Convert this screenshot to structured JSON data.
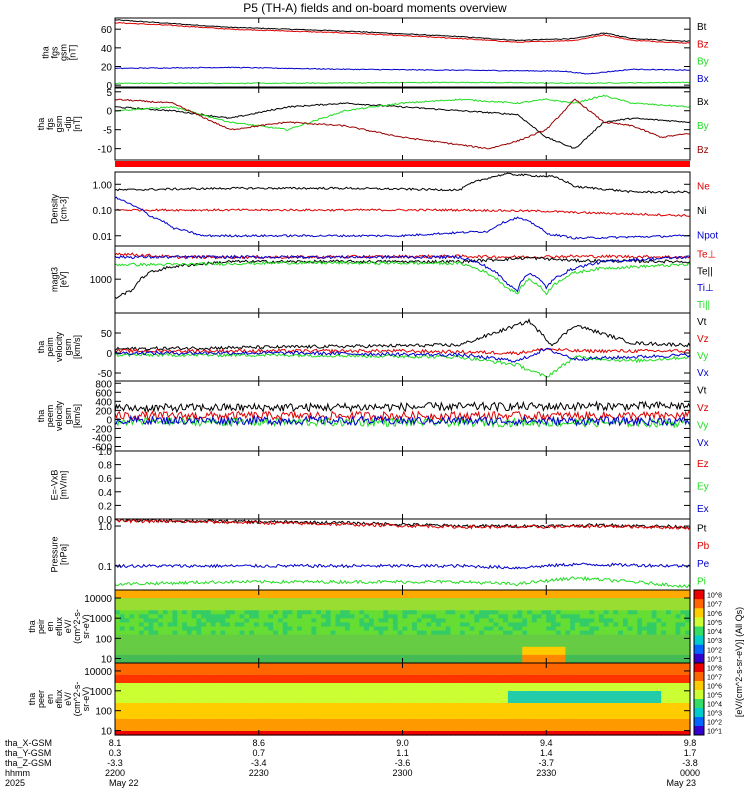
{
  "title": "P5 (TH-A) fields and on-board moments overview",
  "colors": {
    "black": "#000000",
    "red": "#dd0000",
    "blue": "#0000cc",
    "green": "#22dd22",
    "darkred": "#990000",
    "frame": "#000000"
  },
  "chart_data": [
    {
      "type": "line",
      "panel": "fgs_btot",
      "ylabel": [
        "tha",
        "fgs",
        "gsm",
        "[nT]"
      ],
      "ylim": [
        -2,
        72
      ],
      "yticks": [
        0,
        20,
        40,
        60
      ],
      "series": [
        {
          "name": "Bt",
          "color": "#000000",
          "x": [
            0,
            0.1,
            0.2,
            0.3,
            0.4,
            0.5,
            0.6,
            0.7,
            0.8,
            0.85,
            0.9,
            1.0
          ],
          "y": [
            70,
            66,
            62,
            60,
            58,
            55,
            52,
            48,
            50,
            56,
            50,
            47
          ]
        },
        {
          "name": "Bz",
          "color": "#dd0000",
          "x": [
            0,
            0.1,
            0.2,
            0.3,
            0.4,
            0.5,
            0.6,
            0.7,
            0.8,
            0.85,
            0.9,
            1.0
          ],
          "y": [
            67,
            64,
            60,
            58,
            56,
            53,
            50,
            46,
            48,
            54,
            48,
            45
          ]
        },
        {
          "name": "By",
          "color": "#22dd22",
          "x": [
            0,
            0.3,
            0.6,
            0.8,
            1.0
          ],
          "y": [
            2,
            2,
            3,
            2,
            3
          ]
        },
        {
          "name": "Bx",
          "color": "#0000cc",
          "x": [
            0,
            0.2,
            0.4,
            0.6,
            0.78,
            0.82,
            0.9,
            1.0
          ],
          "y": [
            18,
            19,
            17,
            16,
            15,
            12,
            17,
            16
          ]
        }
      ]
    },
    {
      "type": "line",
      "panel": "fgs_bcomp",
      "ylabel": [
        "tha",
        "fgs",
        "gsm",
        "-dip",
        "[nT]"
      ],
      "ylim": [
        -13,
        6
      ],
      "yticks": [
        -10,
        -5,
        0,
        5
      ],
      "series": [
        {
          "name": "Bx",
          "color": "#000000",
          "x": [
            0,
            0.1,
            0.2,
            0.3,
            0.4,
            0.5,
            0.6,
            0.7,
            0.75,
            0.8,
            0.85,
            0.9,
            1.0
          ],
          "y": [
            1,
            0,
            -2,
            1,
            2,
            1,
            0,
            -1,
            -7,
            -10,
            -3,
            -2,
            -3
          ]
        },
        {
          "name": "By",
          "color": "#22dd22",
          "x": [
            0,
            0.1,
            0.2,
            0.3,
            0.4,
            0.5,
            0.6,
            0.7,
            0.75,
            0.8,
            0.85,
            0.9,
            1.0
          ],
          "y": [
            0,
            1,
            -3,
            -5,
            0,
            2,
            3,
            2,
            3,
            2,
            4,
            2,
            1
          ]
        },
        {
          "name": "Bz",
          "color": "#990000",
          "x": [
            0,
            0.1,
            0.2,
            0.3,
            0.4,
            0.5,
            0.6,
            0.65,
            0.7,
            0.75,
            0.8,
            0.85,
            0.9,
            0.95,
            1.0
          ],
          "y": [
            3,
            2,
            -5,
            -3,
            -4,
            -7,
            -9,
            -10,
            -8,
            -5,
            3,
            -3,
            -4,
            -7,
            -6
          ]
        }
      ]
    },
    {
      "type": "line",
      "panel": "density",
      "ylabel": [
        "Density",
        "[cm-3]"
      ],
      "yscale": "log",
      "ylim": [
        0.004,
        3
      ],
      "yticks": [
        0.01,
        0.1,
        1.0
      ],
      "ytick_labels": [
        "0.01",
        "0.10",
        "1.00"
      ],
      "series": [
        {
          "name": "Ne",
          "color": "#dd0000",
          "x": [
            0,
            0.3,
            0.6,
            0.75,
            0.8,
            0.9,
            1.0
          ],
          "y": [
            0.1,
            0.1,
            0.1,
            0.09,
            0.08,
            0.07,
            0.06
          ]
        },
        {
          "name": "Ni",
          "color": "#000000",
          "x": [
            0,
            0.2,
            0.4,
            0.6,
            0.68,
            0.72,
            0.76,
            0.8,
            0.9,
            1.0
          ],
          "y": [
            0.6,
            0.7,
            0.7,
            0.6,
            2.5,
            2.2,
            2.0,
            0.8,
            0.5,
            0.5
          ]
        },
        {
          "name": "Npot",
          "color": "#0000cc",
          "x": [
            0,
            0.03,
            0.06,
            0.1,
            0.15,
            0.3,
            0.5,
            0.65,
            0.7,
            0.75,
            0.8,
            1.0
          ],
          "y": [
            0.3,
            0.15,
            0.06,
            0.02,
            0.01,
            0.01,
            0.01,
            0.015,
            0.05,
            0.012,
            0.008,
            0.01
          ]
        }
      ]
    },
    {
      "type": "line",
      "panel": "temperature",
      "ylabel": [
        "magt3",
        "[eV]"
      ],
      "yscale": "log",
      "ylim": [
        120,
        8000
      ],
      "yticks": [
        1000
      ],
      "ytick_labels": [
        "1000"
      ],
      "series": [
        {
          "name": "Te⊥",
          "color": "#dd0000",
          "x": [
            0,
            0.05,
            0.1,
            0.3,
            0.6,
            0.7,
            0.8,
            1.0
          ],
          "y": [
            5000,
            4500,
            4000,
            4000,
            4200,
            4000,
            4200,
            4000
          ]
        },
        {
          "name": "Te||",
          "color": "#000000",
          "x": [
            0,
            0.03,
            0.06,
            0.1,
            0.2,
            0.4,
            0.6,
            0.68,
            0.72,
            0.8,
            1.0
          ],
          "y": [
            300,
            500,
            1500,
            2200,
            3000,
            3000,
            3000,
            3500,
            3800,
            3200,
            3000
          ]
        },
        {
          "name": "Ti⊥",
          "color": "#0000cc",
          "x": [
            0,
            0.1,
            0.3,
            0.6,
            0.68,
            0.7,
            0.72,
            0.75,
            0.8,
            0.85,
            1.0
          ],
          "y": [
            4000,
            4000,
            4000,
            4000,
            800,
            500,
            1500,
            600,
            2000,
            3000,
            4000
          ]
        },
        {
          "name": "Ti||",
          "color": "#22dd22",
          "x": [
            0,
            0.1,
            0.3,
            0.6,
            0.68,
            0.7,
            0.72,
            0.75,
            0.8,
            0.85,
            1.0
          ],
          "y": [
            2500,
            2500,
            2800,
            2700,
            600,
            400,
            1000,
            400,
            1500,
            2000,
            2500
          ]
        }
      ]
    },
    {
      "type": "line",
      "panel": "peim_velocity",
      "ylabel": [
        "tha",
        "peim",
        "velocity",
        "gsm",
        "[km/s]"
      ],
      "ylim": [
        -70,
        100
      ],
      "yticks": [
        -50,
        0,
        50
      ],
      "series": [
        {
          "name": "Vt",
          "color": "#000000",
          "x": [
            0,
            0.3,
            0.6,
            0.7,
            0.72,
            0.76,
            0.8,
            0.9,
            1.0
          ],
          "y": [
            10,
            15,
            20,
            70,
            80,
            20,
            70,
            25,
            20
          ]
        },
        {
          "name": "Vz",
          "color": "#dd0000",
          "x": [
            0,
            0.5,
            0.7,
            0.75,
            0.8,
            1.0
          ],
          "y": [
            5,
            5,
            0,
            10,
            5,
            5
          ]
        },
        {
          "name": "Vy",
          "color": "#22dd22",
          "x": [
            0,
            0.3,
            0.6,
            0.7,
            0.75,
            0.8,
            0.9,
            1.0
          ],
          "y": [
            -5,
            -5,
            -10,
            -30,
            -60,
            -10,
            -20,
            -10
          ]
        },
        {
          "name": "Vx",
          "color": "#0000cc",
          "x": [
            0,
            0.3,
            0.6,
            0.7,
            0.75,
            0.8,
            1.0
          ],
          "y": [
            0,
            0,
            -5,
            -20,
            10,
            -15,
            -5
          ]
        }
      ]
    },
    {
      "type": "line",
      "panel": "peem_velocity",
      "ylabel": [
        "tha",
        "peem",
        "velocity",
        "gsm",
        "[km/s]"
      ],
      "ylim": [
        -700,
        850
      ],
      "yticks": [
        -600,
        -400,
        -200,
        0,
        200,
        400,
        600,
        800
      ],
      "series": [
        {
          "name": "Vt",
          "color": "#000000",
          "x": [
            0,
            1
          ],
          "y": [
            250,
            300
          ]
        },
        {
          "name": "Vz",
          "color": "#dd0000",
          "x": [
            0,
            1
          ],
          "y": [
            80,
            80
          ]
        },
        {
          "name": "Vy",
          "color": "#22dd22",
          "x": [
            0,
            1
          ],
          "y": [
            -50,
            -80
          ]
        },
        {
          "name": "Vx",
          "color": "#0000cc",
          "x": [
            0,
            1
          ],
          "y": [
            -20,
            -40
          ]
        }
      ]
    },
    {
      "type": "line",
      "panel": "efield",
      "ylabel": [
        "E=-VxB",
        "[mV/m]"
      ],
      "ylim": [
        0,
        1.0
      ],
      "yticks": [
        0.0,
        0.2,
        0.4,
        0.6,
        0.8,
        1.0
      ],
      "ytick_labels": [
        "0.0",
        "0.2",
        "0.4",
        "0.6",
        "0.8",
        "1.0"
      ],
      "series": [
        {
          "name": "Ez",
          "color": "#dd0000",
          "x": [],
          "y": []
        },
        {
          "name": "Ey",
          "color": "#22dd22",
          "x": [],
          "y": []
        },
        {
          "name": "Ex",
          "color": "#0000cc",
          "x": [],
          "y": []
        }
      ]
    },
    {
      "type": "line",
      "panel": "pressure",
      "ylabel": [
        "Pressure",
        "[nPa]"
      ],
      "yscale": "log",
      "ylim": [
        0.025,
        1.5
      ],
      "yticks": [
        0.1,
        1.0
      ],
      "ytick_labels": [
        "0.1",
        "1.0"
      ],
      "series": [
        {
          "name": "Pt",
          "color": "#000000",
          "x": [
            0,
            0.2,
            0.4,
            0.6,
            0.75,
            0.85,
            1.0
          ],
          "y": [
            1.4,
            1.3,
            1.2,
            1.0,
            1.0,
            1.05,
            0.95
          ]
        },
        {
          "name": "Pb",
          "color": "#dd0000",
          "x": [
            0,
            0.2,
            0.4,
            0.6,
            0.75,
            0.85,
            1.0
          ],
          "y": [
            1.35,
            1.25,
            1.1,
            0.95,
            0.95,
            1.0,
            0.9
          ]
        },
        {
          "name": "Pe",
          "color": "#0000cc",
          "x": [
            0,
            0.3,
            0.6,
            0.7,
            0.8,
            1.0
          ],
          "y": [
            0.1,
            0.1,
            0.1,
            0.09,
            0.11,
            0.1
          ]
        },
        {
          "name": "Pi",
          "color": "#22dd22",
          "x": [
            0,
            0.2,
            0.4,
            0.6,
            0.7,
            0.8,
            1.0
          ],
          "y": [
            0.035,
            0.04,
            0.04,
            0.04,
            0.035,
            0.05,
            0.03
          ]
        }
      ]
    },
    {
      "type": "heatmap",
      "panel": "peir_eflux",
      "ylabel": [
        "tha",
        "peir",
        "en",
        "eflux",
        "eV/",
        "(cm^2-s-",
        "sr-eV)"
      ],
      "yscale": "log",
      "ylim": [
        6,
        25000
      ],
      "yticks": [
        10,
        100,
        1000,
        10000
      ],
      "ytick_labels": [
        "10",
        "100",
        "1000",
        "10000"
      ]
    },
    {
      "type": "heatmap",
      "panel": "peer_eflux",
      "ylabel": [
        "tha",
        "peer",
        "en",
        "eflux",
        "eV/",
        "(cm^2-s-",
        "sr-eV)"
      ],
      "yscale": "log",
      "ylim": [
        6,
        25000
      ],
      "yticks": [
        10,
        100,
        1000,
        10000
      ],
      "ytick_labels": [
        "10",
        "100",
        "1000",
        "10000"
      ]
    }
  ],
  "colorbar": {
    "label": "[eV/(cm^2-s-sr-eV)] (All Qs)",
    "ticks": [
      "10^8",
      "10^7",
      "10^6",
      "10^5",
      "10^4",
      "10^3",
      "10^2",
      "10^1"
    ]
  },
  "xaxis": {
    "rows": [
      {
        "label": "tha_X-GSM",
        "values": [
          "8.1",
          "8.6",
          "9.0",
          "9.4",
          "9.8"
        ]
      },
      {
        "label": "tha_Y-GSM",
        "values": [
          "0.3",
          "0.7",
          "1.1",
          "1.4",
          "1.7"
        ]
      },
      {
        "label": "tha_Z-GSM",
        "values": [
          "-3.3",
          "-3.4",
          "-3.6",
          "-3.7",
          "-3.8"
        ]
      },
      {
        "label": "hhmm",
        "values": [
          "2200",
          "2230",
          "2300",
          "2330",
          "0000"
        ]
      },
      {
        "label": "2025",
        "values": [
          "May 22",
          "",
          "",
          "",
          "May 23"
        ]
      }
    ]
  }
}
